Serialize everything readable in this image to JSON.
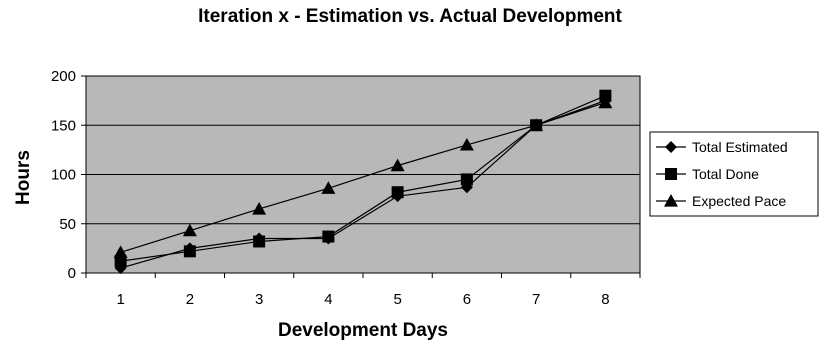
{
  "chart_data": {
    "type": "line",
    "title": "Iteration x - Estimation vs. Actual Development",
    "xlabel": "Development Days",
    "ylabel": "Hours",
    "categories": [
      "1",
      "2",
      "3",
      "4",
      "5",
      "6",
      "7",
      "8"
    ],
    "ylim": [
      0,
      200
    ],
    "yticks": [
      "0",
      "50",
      "100",
      "150",
      "200"
    ],
    "grid": true,
    "legend_position": "right",
    "plot_background": "#b8b8b8",
    "series": [
      {
        "name": "Total Estimated",
        "marker": "diamond",
        "values": [
          5,
          25,
          35,
          35,
          78,
          87,
          150,
          175
        ]
      },
      {
        "name": "Total Done",
        "marker": "square",
        "values": [
          12,
          22,
          32,
          37,
          82,
          95,
          150,
          180
        ]
      },
      {
        "name": "Expected Pace",
        "marker": "triangle",
        "values": [
          21,
          43,
          65,
          86,
          109,
          130,
          150,
          173
        ]
      }
    ]
  }
}
